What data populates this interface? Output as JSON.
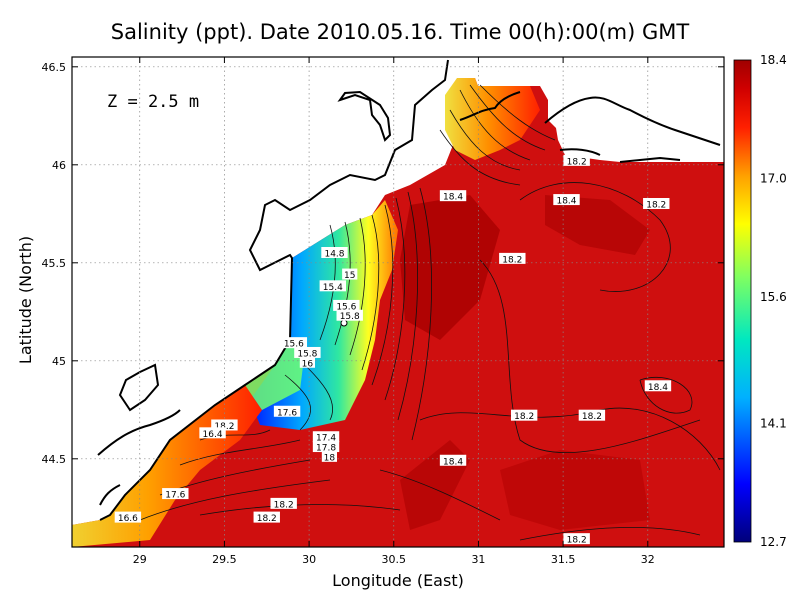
{
  "chart_data": {
    "type": "heatmap",
    "title": "Salinity (ppt). Date 2010.05.16. Time 00(h):00(m) GMT",
    "xlabel": "Longitude (East)",
    "ylabel": "Latitude (North)",
    "xlim": [
      28.6,
      32.45
    ],
    "ylim": [
      44.05,
      46.55
    ],
    "x_ticks": [
      29,
      29.5,
      30,
      30.5,
      31,
      31.5,
      32
    ],
    "x_tick_labels": [
      "29",
      "29.5",
      "30",
      "30.5",
      "31",
      "31.5",
      "32"
    ],
    "y_ticks": [
      44.5,
      45,
      45.5,
      46,
      46.5
    ],
    "y_tick_labels": [
      "44.5",
      "45",
      "45.5",
      "46",
      "46.5"
    ],
    "grid": true,
    "annotation": "Z = 2.5 m",
    "colorbar": {
      "range": [
        12.7,
        18.4
      ],
      "tick_values": [
        12.7,
        14.1,
        15.6,
        17.0,
        18.4
      ],
      "tick_labels": [
        "12.7",
        "14.1",
        "15.6",
        "17.0",
        "18.4"
      ],
      "colors": [
        "#00007a",
        "#0000ff",
        "#00b0ff",
        "#00e8c0",
        "#80ff60",
        "#ffff00",
        "#ffa000",
        "#ff2000",
        "#d00000",
        "#a00000"
      ]
    },
    "contour_labels": [
      {
        "text": "18.2",
        "lon": 31.58,
        "lat": 46.02
      },
      {
        "text": "18.4",
        "lon": 30.85,
        "lat": 45.84
      },
      {
        "text": "18.4",
        "lon": 31.52,
        "lat": 45.82
      },
      {
        "text": "18.2",
        "lon": 32.05,
        "lat": 45.8
      },
      {
        "text": "18.2",
        "lon": 31.2,
        "lat": 45.52
      },
      {
        "text": "14.8",
        "lon": 30.15,
        "lat": 45.55
      },
      {
        "text": "15",
        "lon": 30.24,
        "lat": 45.44
      },
      {
        "text": "15.4",
        "lon": 30.14,
        "lat": 45.38
      },
      {
        "text": "15.6",
        "lon": 30.22,
        "lat": 45.28
      },
      {
        "text": "15.8",
        "lon": 30.24,
        "lat": 45.23
      },
      {
        "text": "15.6",
        "lon": 29.91,
        "lat": 45.09
      },
      {
        "text": "15.8",
        "lon": 29.99,
        "lat": 45.04
      },
      {
        "text": "16",
        "lon": 29.99,
        "lat": 44.99
      },
      {
        "text": "18.4",
        "lon": 32.06,
        "lat": 44.87
      },
      {
        "text": "18.2",
        "lon": 31.27,
        "lat": 44.72
      },
      {
        "text": "18.2",
        "lon": 31.67,
        "lat": 44.72
      },
      {
        "text": "17.6",
        "lon": 29.87,
        "lat": 44.74
      },
      {
        "text": "18.2",
        "lon": 29.5,
        "lat": 44.67
      },
      {
        "text": "16.4",
        "lon": 29.43,
        "lat": 44.63
      },
      {
        "text": "17.4",
        "lon": 30.1,
        "lat": 44.61
      },
      {
        "text": "17.8",
        "lon": 30.1,
        "lat": 44.56
      },
      {
        "text": "18",
        "lon": 30.12,
        "lat": 44.51
      },
      {
        "text": "18.4",
        "lon": 30.85,
        "lat": 44.49
      },
      {
        "text": "17.6",
        "lon": 29.21,
        "lat": 44.32
      },
      {
        "text": "18.2",
        "lon": 29.85,
        "lat": 44.27
      },
      {
        "text": "16.6",
        "lon": 28.93,
        "lat": 44.2
      },
      {
        "text": "18.2",
        "lon": 29.75,
        "lat": 44.2
      },
      {
        "text": "18.2",
        "lon": 31.58,
        "lat": 44.09
      }
    ]
  }
}
